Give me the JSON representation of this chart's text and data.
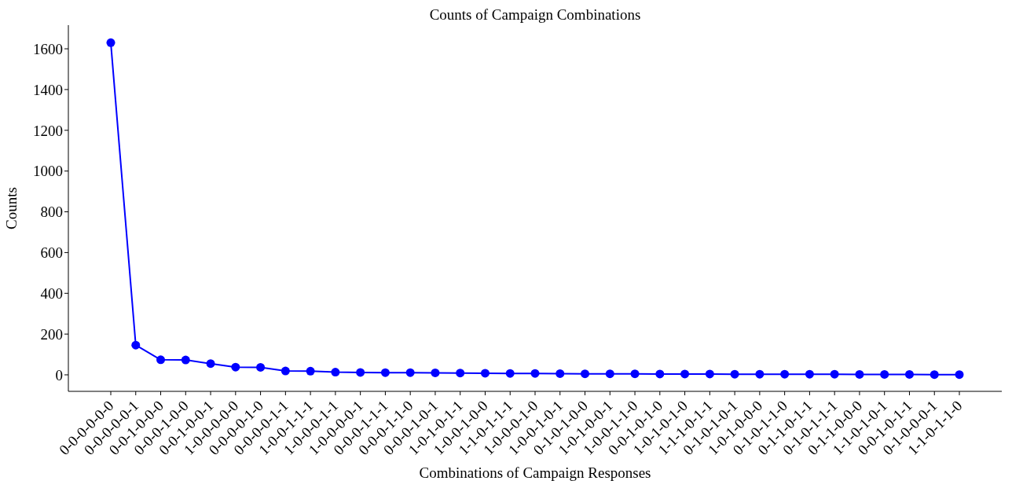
{
  "chart_data": {
    "type": "line",
    "title": "Counts of Campaign Combinations",
    "xlabel": "Combinations of Campaign Responses",
    "ylabel": "Counts",
    "categories": [
      "0-0-0-0-0-0",
      "0-0-0-0-0-1",
      "0-0-1-0-0-0",
      "0-0-0-1-0-0",
      "0-0-1-0-0-1",
      "1-0-0-0-0-0",
      "0-0-0-0-1-0",
      "0-0-0-0-1-1",
      "1-0-0-1-1-1",
      "1-0-0-0-1-1",
      "1-0-0-0-0-1",
      "0-0-0-1-1-1",
      "0-0-0-1-1-0",
      "0-0-0-1-0-1",
      "1-0-1-0-1-1",
      "1-0-0-1-0-0",
      "1-1-0-1-1-1",
      "1-0-0-0-1-0",
      "1-0-0-1-0-1",
      "0-1-0-1-0-0",
      "1-0-1-0-0-1",
      "1-0-0-1-1-0",
      "0-0-1-0-1-0",
      "1-0-1-0-1-0",
      "1-1-1-0-1-1",
      "0-1-0-1-0-1",
      "1-0-1-0-0-0",
      "0-1-0-1-1-0",
      "0-1-1-0-1-1",
      "0-1-0-1-1-1",
      "0-1-1-0-0-0",
      "1-1-0-1-0-1",
      "0-0-1-0-1-1",
      "0-1-0-0-0-1",
      "1-1-0-1-1-0"
    ],
    "series": [
      {
        "color": "#0000ff",
        "values": [
          1630,
          146,
          74,
          73,
          55,
          38,
          37,
          19,
          18,
          13,
          12,
          11,
          11,
          10,
          9,
          8,
          7,
          7,
          6,
          5,
          5,
          5,
          4,
          4,
          4,
          3,
          3,
          3,
          3,
          3,
          2,
          2,
          2,
          1,
          1
        ]
      }
    ],
    "ylim": [
      -81,
      1716
    ],
    "yticks": [
      0,
      200,
      400,
      600,
      800,
      1000,
      1200,
      1400,
      1600
    ],
    "marker": "circle",
    "line_style": "solid"
  }
}
